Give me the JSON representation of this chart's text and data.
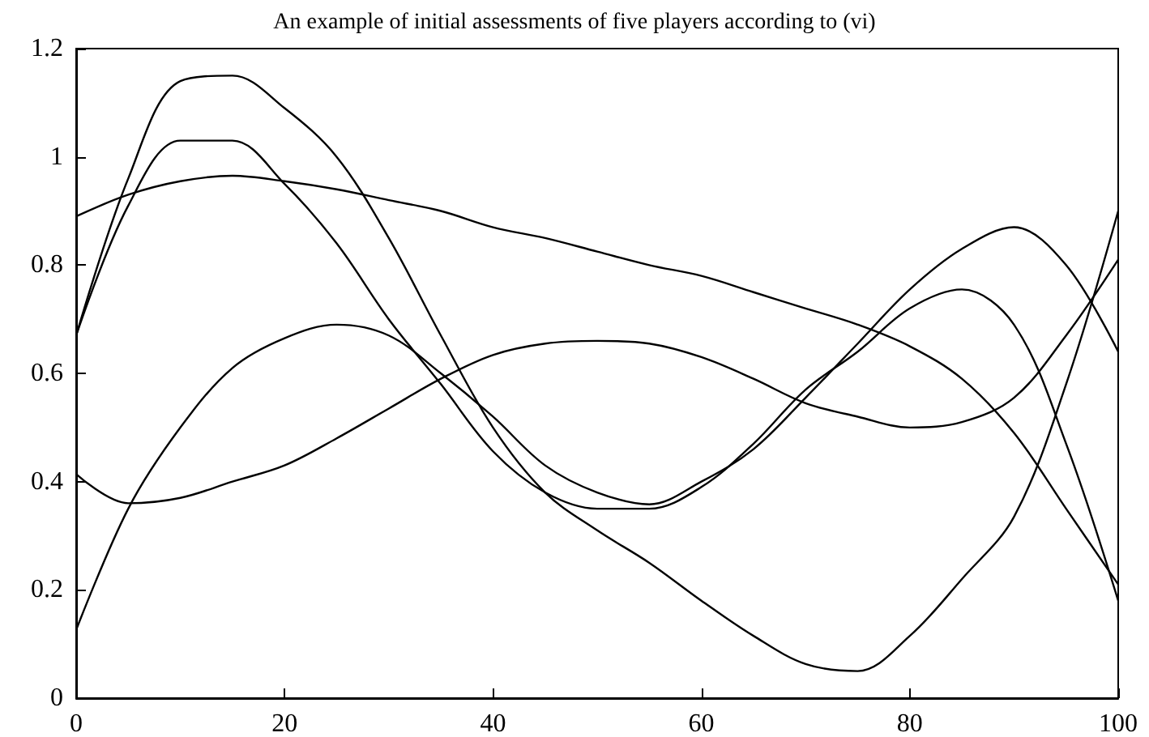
{
  "chart_data": {
    "type": "line",
    "title": "An example of initial assessments of five players according to (vi)",
    "x": [
      0,
      5,
      10,
      15,
      20,
      25,
      30,
      35,
      40,
      45,
      50,
      55,
      60,
      65,
      70,
      75,
      80,
      85,
      90,
      95,
      100
    ],
    "series": [
      {
        "color": "#000000",
        "values": [
          0.67,
          0.96,
          1.14,
          1.15,
          1.09,
          1.0,
          0.85,
          0.67,
          0.5,
          0.38,
          0.31,
          0.25,
          0.18,
          0.115,
          0.063,
          0.05,
          0.115,
          0.22,
          0.335,
          0.58,
          0.9
        ]
      },
      {
        "color": "#000000",
        "values": [
          0.67,
          0.91,
          1.03,
          1.03,
          0.95,
          0.84,
          0.7,
          0.58,
          0.456,
          0.38,
          0.35,
          0.35,
          0.39,
          0.47,
          0.57,
          0.64,
          0.72,
          0.755,
          0.69,
          0.47,
          0.18
        ]
      },
      {
        "color": "#000000",
        "values": [
          0.89,
          0.93,
          0.955,
          0.965,
          0.955,
          0.94,
          0.92,
          0.9,
          0.87,
          0.85,
          0.825,
          0.8,
          0.78,
          0.75,
          0.72,
          0.69,
          0.65,
          0.59,
          0.49,
          0.35,
          0.21
        ]
      },
      {
        "color": "#000000",
        "values": [
          0.414,
          0.36,
          0.37,
          0.4,
          0.43,
          0.48,
          0.535,
          0.59,
          0.634,
          0.655,
          0.66,
          0.655,
          0.63,
          0.59,
          0.545,
          0.52,
          0.5,
          0.51,
          0.555,
          0.67,
          0.81
        ]
      },
      {
        "color": "#000000",
        "values": [
          0.126,
          0.35,
          0.5,
          0.61,
          0.665,
          0.69,
          0.67,
          0.6,
          0.52,
          0.43,
          0.38,
          0.358,
          0.4,
          0.46,
          0.555,
          0.655,
          0.755,
          0.83,
          0.87,
          0.8,
          0.64
        ]
      }
    ],
    "xlim": [
      0,
      100
    ],
    "xticks": [
      0,
      20,
      40,
      60,
      80,
      100
    ],
    "ylim": [
      0,
      1.2
    ],
    "yticks": [
      0,
      0.2,
      0.4,
      0.6,
      0.8,
      1,
      1.2
    ],
    "grid": false,
    "marker": "none",
    "line_style": "solid"
  }
}
